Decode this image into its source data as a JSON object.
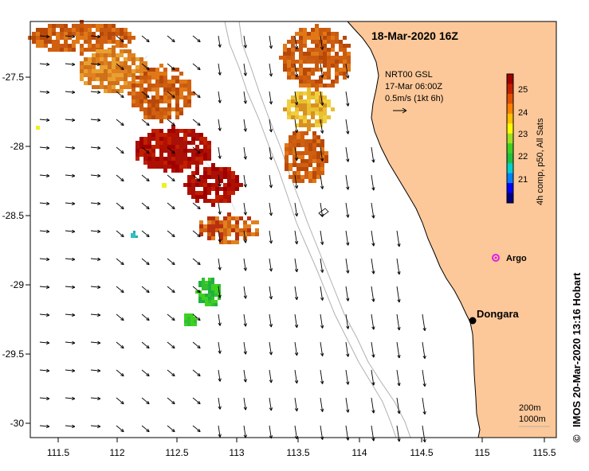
{
  "title": "18-Mar-2020 16Z",
  "current_info": {
    "line1": "NRT00 GSL",
    "line2": "17-Mar 06:00Z",
    "line3": "0.5m/s (1kt 6h)"
  },
  "colorbar": {
    "label": "4h comp, p50, All Sats",
    "ticks": [
      "25",
      "24",
      "23",
      "22",
      "21"
    ],
    "colors": [
      "#00007f",
      "#0000ff",
      "#0080ff",
      "#00d0d0",
      "#20c040",
      "#40d020",
      "#a0e020",
      "#ffff00",
      "#ffc000",
      "#ff8000",
      "#e05000",
      "#c02000",
      "#a00000"
    ]
  },
  "places": {
    "dongara": "Dongara",
    "argo": "Argo"
  },
  "depth_legend": {
    "line1": "200m",
    "line2": "1000m"
  },
  "credit": {
    "symbol": "©",
    "text": "IMOS 20-Mar-2020 13:16 Hobart"
  },
  "axes": {
    "x_ticks": [
      "111.5",
      "112",
      "112.5",
      "113",
      "113.5",
      "114",
      "114.5",
      "115",
      "115.5"
    ],
    "y_ticks": [
      "-27.5",
      "-28",
      "-28.5",
      "-29",
      "-29.5",
      "-30"
    ]
  },
  "colors": {
    "land": "#fdc899",
    "coast": "#000000",
    "isobath": "#b0b0b0",
    "argo": "#e020e0"
  }
}
